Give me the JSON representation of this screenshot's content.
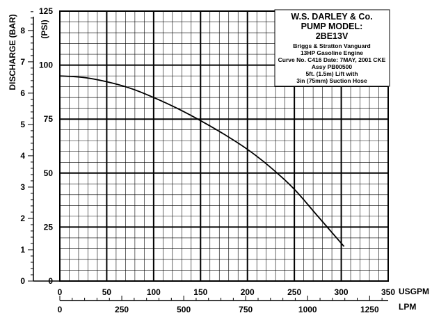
{
  "chart_data": {
    "type": "line",
    "ylabel_bar": "DISCHARGE (BAR)",
    "ylabel_psi": "(PSI)",
    "xlabel_usgpm": "USGPM",
    "xlabel_lpm": "LPM",
    "x_usgpm_ticks": [
      "0",
      "50",
      "100",
      "150",
      "200",
      "250",
      "300",
      "350"
    ],
    "x_lpm_ticks": [
      "0",
      "250",
      "500",
      "750",
      "1000",
      "1250"
    ],
    "y_psi_ticks": [
      "0",
      "25",
      "50",
      "75",
      "100",
      "125"
    ],
    "y_bar_ticks": [
      "0",
      "1",
      "2",
      "3",
      "4",
      "5",
      "6",
      "7",
      "8"
    ],
    "xlim_usgpm": [
      0,
      350
    ],
    "ylim_psi": [
      0,
      125
    ],
    "grid": true,
    "series": [
      {
        "x": [
          0,
          25,
          50,
          75,
          100,
          125,
          150,
          175,
          200,
          225,
          250,
          275,
          303
        ],
        "y": [
          95,
          94.3,
          92.3,
          89.3,
          85,
          80,
          74.3,
          68,
          61,
          52.5,
          42.5,
          30,
          16
        ]
      }
    ],
    "info_box": {
      "lines": [
        "W.S. DARLEY & Co.",
        "PUMP MODEL:",
        "2BE13V",
        "Briggs & Stratton Vanguard",
        "13HP Gasoline Engine",
        "Curve No. C416 Date: 7MAY, 2001 CKE",
        "Assy PB00500",
        "5ft. (1.5m) Lift with",
        "3in (75mm) Suction Hose"
      ]
    }
  }
}
